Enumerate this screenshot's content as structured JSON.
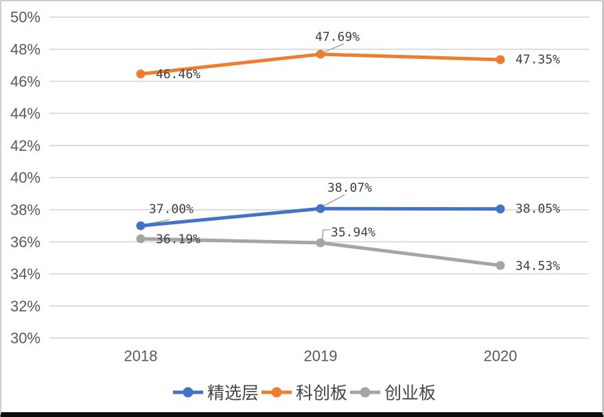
{
  "frame": {
    "background": "#ffffff",
    "border_color": "#cfcfcf",
    "bottom_bar_color": "#0d0d0d"
  },
  "chart_data": {
    "type": "line",
    "title": "",
    "categories": [
      "2018",
      "2019",
      "2020"
    ],
    "series": [
      {
        "name": "精选层",
        "color": "#4472C4",
        "values": [
          37.0,
          38.07,
          38.05
        ],
        "point_labels": [
          "37.00%",
          "38.07%",
          "38.05%"
        ]
      },
      {
        "name": "科创板",
        "color": "#ED7D31",
        "values": [
          46.46,
          47.69,
          47.35
        ],
        "point_labels": [
          "46.46%",
          "47.69%",
          "47.35%"
        ]
      },
      {
        "name": "创业板",
        "color": "#A5A5A5",
        "values": [
          36.19,
          35.94,
          34.53
        ],
        "point_labels": [
          "36.19%",
          "35.94%",
          "34.53%"
        ]
      }
    ],
    "y_axis": {
      "min": 30,
      "max": 50,
      "step": 2,
      "grid": true,
      "tick_labels": [
        "50%",
        "48%",
        "46%",
        "44%",
        "42%",
        "40%",
        "38%",
        "36%",
        "34%",
        "32%",
        "30%"
      ]
    },
    "x_axis": {
      "tick_labels": [
        "2018",
        "2019",
        "2020"
      ]
    },
    "legend": {
      "position": "bottom",
      "items": [
        "精选层",
        "科创板",
        "创业板"
      ]
    },
    "colors": {
      "gridline": "#D9D9D9",
      "axis_text": "#595959",
      "data_label_text": "#404040",
      "leader_line": "#A6A6A6",
      "legend_text": "#444444"
    }
  }
}
